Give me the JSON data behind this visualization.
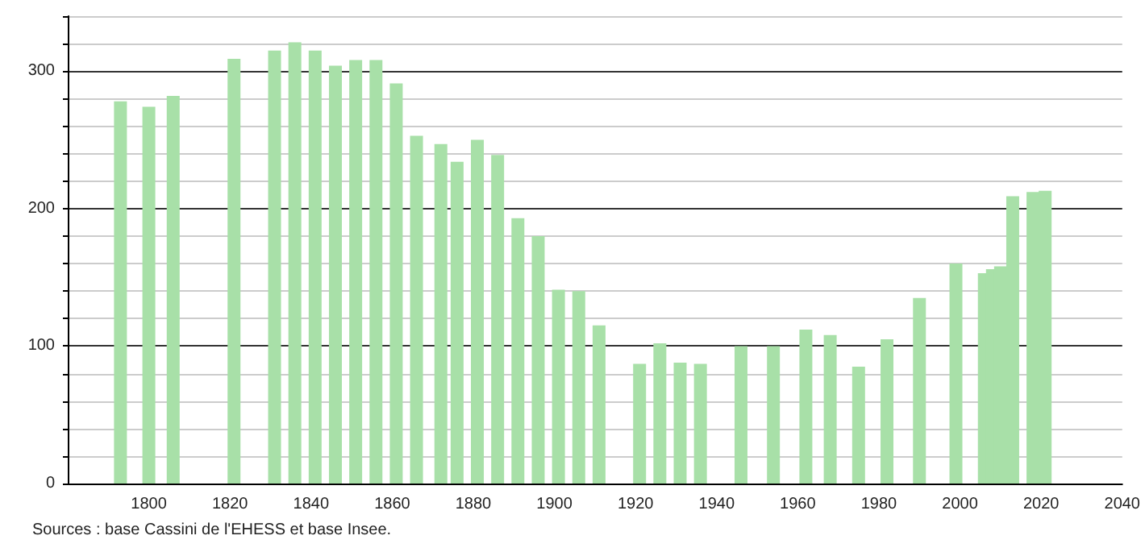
{
  "chart_data": {
    "type": "bar",
    "x": [
      1793,
      1800,
      1806,
      1821,
      1831,
      1836,
      1841,
      1846,
      1851,
      1856,
      1861,
      1866,
      1872,
      1876,
      1881,
      1886,
      1891,
      1896,
      1901,
      1906,
      1911,
      1921,
      1926,
      1931,
      1936,
      1946,
      1954,
      1962,
      1968,
      1975,
      1982,
      1990,
      1999,
      2006,
      2008,
      2010,
      2013,
      2018,
      2021
    ],
    "values": [
      278,
      274,
      282,
      309,
      315,
      321,
      315,
      304,
      308,
      308,
      291,
      253,
      247,
      234,
      250,
      239,
      193,
      180,
      141,
      140,
      115,
      87,
      102,
      88,
      87,
      100,
      100,
      112,
      108,
      85,
      105,
      135,
      160,
      153,
      156,
      158,
      209,
      212,
      213
    ],
    "color": "#a8e0a8",
    "xlim": [
      1780,
      2040
    ],
    "xticks": [
      1800,
      1820,
      1840,
      1860,
      1880,
      1900,
      1920,
      1940,
      1960,
      1980,
      2000,
      2020,
      2040
    ],
    "ylim": [
      0,
      340
    ],
    "yticks": [
      0,
      {
        "value": 20,
        "label": null
      },
      {
        "value": 40,
        "label": null
      },
      {
        "value": 60,
        "label": null
      },
      {
        "value": 80,
        "label": null
      },
      100,
      {
        "value": 120,
        "label": null
      },
      {
        "value": 140,
        "label": null
      },
      {
        "value": 160,
        "label": null
      },
      {
        "value": 180,
        "label": null
      },
      200,
      {
        "value": 220,
        "label": null
      },
      {
        "value": 240,
        "label": null
      },
      {
        "value": 260,
        "label": null
      },
      {
        "value": 280,
        "label": null
      },
      300,
      {
        "value": 320,
        "label": null
      },
      {
        "value": 340,
        "label": null
      }
    ],
    "grid": "y",
    "annotations": [
      "Sources : base Cassini de l'EHESS et base Insee."
    ]
  }
}
